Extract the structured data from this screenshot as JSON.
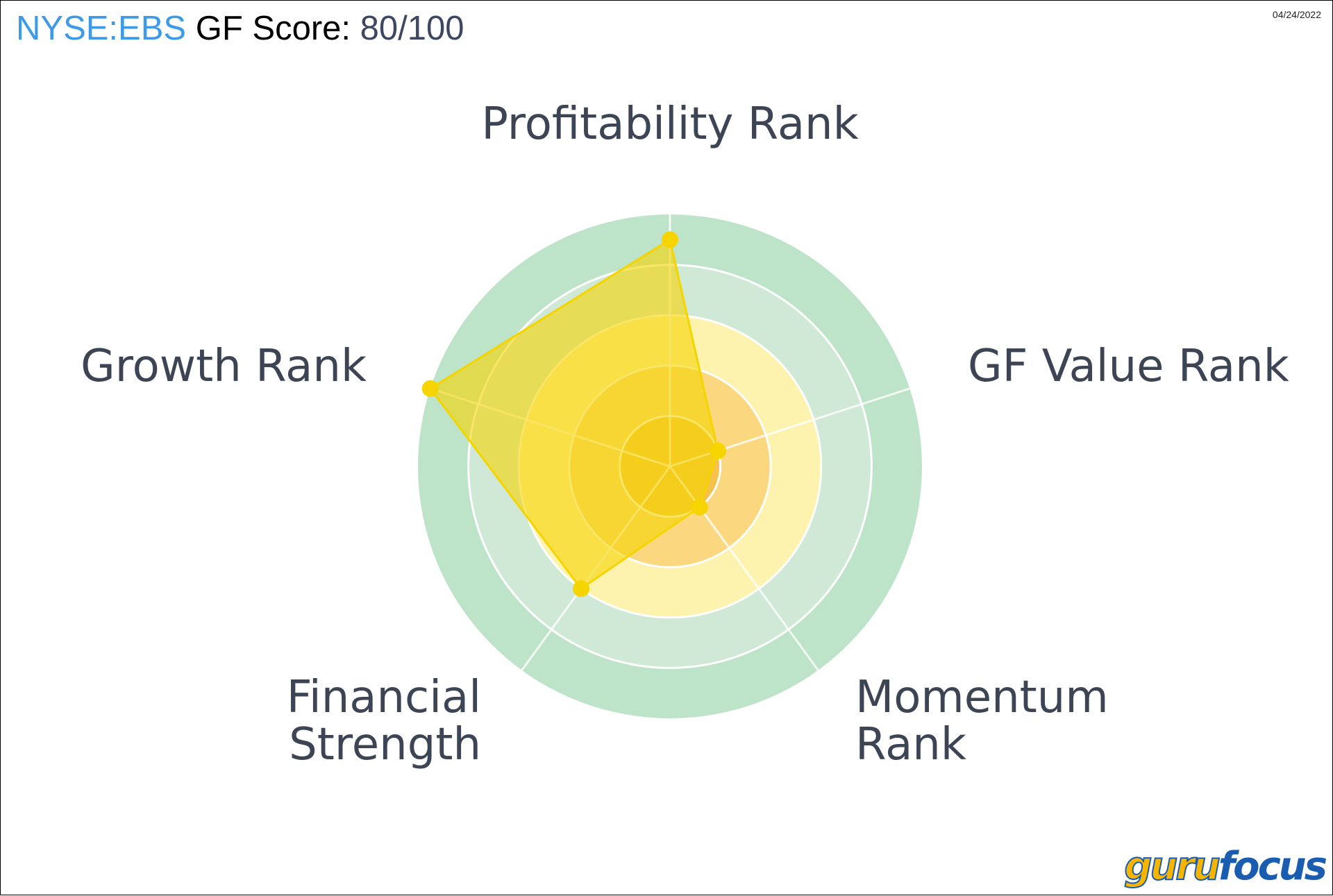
{
  "header": {
    "ticker": "NYSE:EBS",
    "score_label": "GF Score:",
    "score": "80/100",
    "date": "04/24/2022"
  },
  "logo": {
    "part1": "guru",
    "part2": "focus"
  },
  "chart_data": {
    "type": "radar",
    "categories": [
      "Profitability Rank",
      "GF Value Rank",
      "Momentum Rank",
      "Financial Strength",
      "Growth Rank"
    ],
    "values": [
      9,
      2,
      2,
      6,
      10
    ],
    "color": "#f5d400",
    "rlim": [
      0,
      10
    ],
    "rticks": [
      2,
      4,
      6,
      8,
      10
    ],
    "band_colors": [
      "#f6c24a",
      "#fbd880",
      "#fdf2ae",
      "#cfe9d6",
      "#bde3c9"
    ]
  }
}
